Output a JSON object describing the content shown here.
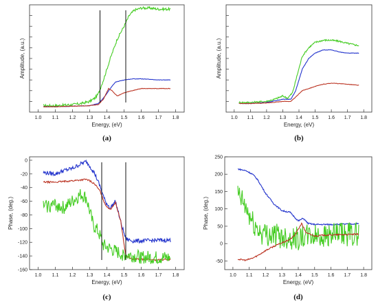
{
  "chart_data": [
    {
      "panel": "a",
      "type": "line",
      "caption": "(a)",
      "xlabel": "Energy, (eV)",
      "ylabel": "Amplitude, (a.u.)",
      "xlim": [
        0.95,
        1.85
      ],
      "ylim": [
        0,
        1
      ],
      "xticks": [
        "1.0",
        "1.1",
        "1.2",
        "1.3",
        "1.4",
        "1.5",
        "1.6",
        "1.7",
        "1.8"
      ],
      "yticks": [],
      "grid": false,
      "legend": "none",
      "vlines": [
        1.36,
        1.51
      ],
      "series": [
        {
          "color": "#44cc22",
          "noise": 0.012,
          "x": [
            1.03,
            1.1,
            1.2,
            1.25,
            1.3,
            1.33,
            1.35,
            1.38,
            1.42,
            1.46,
            1.5,
            1.53,
            1.56,
            1.6,
            1.65,
            1.7,
            1.77
          ],
          "y": [
            0.06,
            0.06,
            0.07,
            0.08,
            0.1,
            0.13,
            0.17,
            0.3,
            0.5,
            0.68,
            0.8,
            0.9,
            0.95,
            0.97,
            0.97,
            0.96,
            0.96
          ]
        },
        {
          "color": "#2233cc",
          "noise": 0.002,
          "x": [
            1.03,
            1.1,
            1.2,
            1.3,
            1.35,
            1.38,
            1.42,
            1.45,
            1.5,
            1.55,
            1.6,
            1.65,
            1.7,
            1.77
          ],
          "y": [
            0.05,
            0.05,
            0.055,
            0.06,
            0.08,
            0.13,
            0.22,
            0.28,
            0.3,
            0.31,
            0.31,
            0.305,
            0.3,
            0.3
          ]
        },
        {
          "color": "#bb3322",
          "noise": 0.002,
          "x": [
            1.03,
            1.1,
            1.2,
            1.3,
            1.35,
            1.38,
            1.41,
            1.43,
            1.46,
            1.5,
            1.55,
            1.6,
            1.7,
            1.77
          ],
          "y": [
            0.05,
            0.05,
            0.055,
            0.06,
            0.07,
            0.12,
            0.22,
            0.2,
            0.15,
            0.18,
            0.2,
            0.22,
            0.22,
            0.22
          ]
        }
      ]
    },
    {
      "panel": "b",
      "type": "line",
      "caption": "(b)",
      "xlabel": "Energy, (eV)",
      "ylabel": "Amplitude, (a.u.)",
      "xlim": [
        0.95,
        1.85
      ],
      "ylim": [
        0,
        1
      ],
      "xticks": [
        "1.0",
        "1.1",
        "1.2",
        "1.3",
        "1.4",
        "1.5",
        "1.6",
        "1.7",
        "1.8"
      ],
      "yticks": [],
      "grid": false,
      "legend": "none",
      "vlines": [],
      "series": [
        {
          "color": "#44cc22",
          "noise": 0.008,
          "x": [
            1.03,
            1.1,
            1.2,
            1.25,
            1.3,
            1.33,
            1.36,
            1.39,
            1.42,
            1.46,
            1.5,
            1.55,
            1.6,
            1.65,
            1.7,
            1.77
          ],
          "y": [
            0.09,
            0.09,
            0.1,
            0.12,
            0.15,
            0.13,
            0.18,
            0.35,
            0.52,
            0.6,
            0.65,
            0.67,
            0.67,
            0.66,
            0.64,
            0.62
          ]
        },
        {
          "color": "#2233cc",
          "noise": 0.002,
          "x": [
            1.03,
            1.1,
            1.2,
            1.3,
            1.35,
            1.38,
            1.42,
            1.46,
            1.5,
            1.55,
            1.6,
            1.65,
            1.7,
            1.77
          ],
          "y": [
            0.08,
            0.08,
            0.09,
            0.12,
            0.12,
            0.2,
            0.4,
            0.5,
            0.55,
            0.58,
            0.58,
            0.56,
            0.55,
            0.55
          ]
        },
        {
          "color": "#bb3322",
          "noise": 0.002,
          "x": [
            1.03,
            1.1,
            1.2,
            1.3,
            1.35,
            1.38,
            1.42,
            1.46,
            1.5,
            1.55,
            1.6,
            1.7,
            1.77
          ],
          "y": [
            0.08,
            0.08,
            0.085,
            0.1,
            0.1,
            0.14,
            0.2,
            0.22,
            0.24,
            0.26,
            0.27,
            0.26,
            0.25
          ]
        }
      ]
    },
    {
      "panel": "c",
      "type": "line",
      "caption": "(c)",
      "xlabel": "Energy, (eV)",
      "ylabel": "Phase, (deg.)",
      "xlim": [
        0.95,
        1.85
      ],
      "ylim": [
        -160,
        5
      ],
      "xticks": [
        "1.0",
        "1.1",
        "1.2",
        "1.3",
        "1.4",
        "1.5",
        "1.6",
        "1.7",
        "1.8"
      ],
      "yticks": [
        "0",
        "-20",
        "-40",
        "-60",
        "-80",
        "-100",
        "-120",
        "-140",
        "-160"
      ],
      "grid": false,
      "legend": "none",
      "vlines": [
        1.37,
        1.51
      ],
      "series": [
        {
          "color": "#2233cc",
          "noise": 3.0,
          "x": [
            1.03,
            1.1,
            1.15,
            1.2,
            1.25,
            1.28,
            1.3,
            1.33,
            1.36,
            1.39,
            1.42,
            1.45,
            1.48,
            1.51,
            1.55,
            1.6,
            1.7,
            1.77
          ],
          "y": [
            -18,
            -20,
            -15,
            -12,
            -5,
            -2,
            -8,
            -20,
            -38,
            -60,
            -70,
            -60,
            -90,
            -115,
            -118,
            -118,
            -117,
            -117
          ]
        },
        {
          "color": "#bb3322",
          "noise": 1.2,
          "x": [
            1.03,
            1.1,
            1.2,
            1.28,
            1.3,
            1.33,
            1.36,
            1.39,
            1.42,
            1.45,
            1.48,
            1.51,
            1.55,
            1.6,
            1.7,
            1.77
          ],
          "y": [
            -32,
            -32,
            -30,
            -28,
            -30,
            -35,
            -45,
            -65,
            -72,
            -62,
            -88,
            -140,
            -145,
            -145,
            -146,
            -145
          ]
        },
        {
          "color": "#44cc22",
          "noise": 10.0,
          "x": [
            1.03,
            1.1,
            1.15,
            1.2,
            1.25,
            1.28,
            1.3,
            1.32,
            1.35,
            1.38,
            1.42,
            1.46,
            1.5,
            1.55,
            1.6,
            1.7,
            1.77
          ],
          "y": [
            -68,
            -65,
            -70,
            -60,
            -50,
            -55,
            -75,
            -95,
            -105,
            -125,
            -130,
            -135,
            -138,
            -140,
            -142,
            -143,
            -143
          ]
        }
      ]
    },
    {
      "panel": "d",
      "type": "line",
      "caption": "(d)",
      "xlabel": "Energy, (eV)",
      "ylabel": "Phase, (deg.)",
      "xlim": [
        0.95,
        1.85
      ],
      "ylim": [
        -75,
        250
      ],
      "xticks": [
        "1.0",
        "1.1",
        "1.2",
        "1.3",
        "1.4",
        "1.5",
        "1.6",
        "1.7",
        "1.8"
      ],
      "yticks": [
        "250",
        "200",
        "150",
        "100",
        "50",
        "0",
        "-50"
      ],
      "grid": false,
      "legend": "none",
      "vlines": [],
      "series": [
        {
          "color": "#2233cc",
          "noise": 2.0,
          "x": [
            1.03,
            1.08,
            1.12,
            1.15,
            1.2,
            1.25,
            1.3,
            1.35,
            1.4,
            1.43,
            1.46,
            1.5,
            1.55,
            1.6,
            1.7,
            1.77
          ],
          "y": [
            215,
            210,
            200,
            185,
            145,
            115,
            95,
            90,
            65,
            73,
            58,
            55,
            55,
            55,
            56,
            57
          ]
        },
        {
          "color": "#44cc22",
          "noise": 35.0,
          "x": [
            1.03,
            1.06,
            1.09,
            1.12,
            1.15,
            1.18,
            1.2,
            1.25,
            1.3,
            1.35,
            1.4,
            1.45,
            1.5,
            1.6,
            1.7,
            1.77
          ],
          "y": [
            140,
            120,
            90,
            60,
            40,
            30,
            28,
            25,
            20,
            18,
            15,
            20,
            22,
            24,
            26,
            28
          ]
        },
        {
          "color": "#bb3322",
          "noise": 2.0,
          "x": [
            1.03,
            1.08,
            1.12,
            1.15,
            1.2,
            1.25,
            1.3,
            1.35,
            1.38,
            1.42,
            1.45,
            1.5,
            1.55,
            1.6,
            1.7,
            1.77
          ],
          "y": [
            -45,
            -48,
            -42,
            -35,
            -20,
            -8,
            2,
            12,
            25,
            58,
            30,
            22,
            24,
            25,
            26,
            27
          ]
        }
      ]
    }
  ]
}
